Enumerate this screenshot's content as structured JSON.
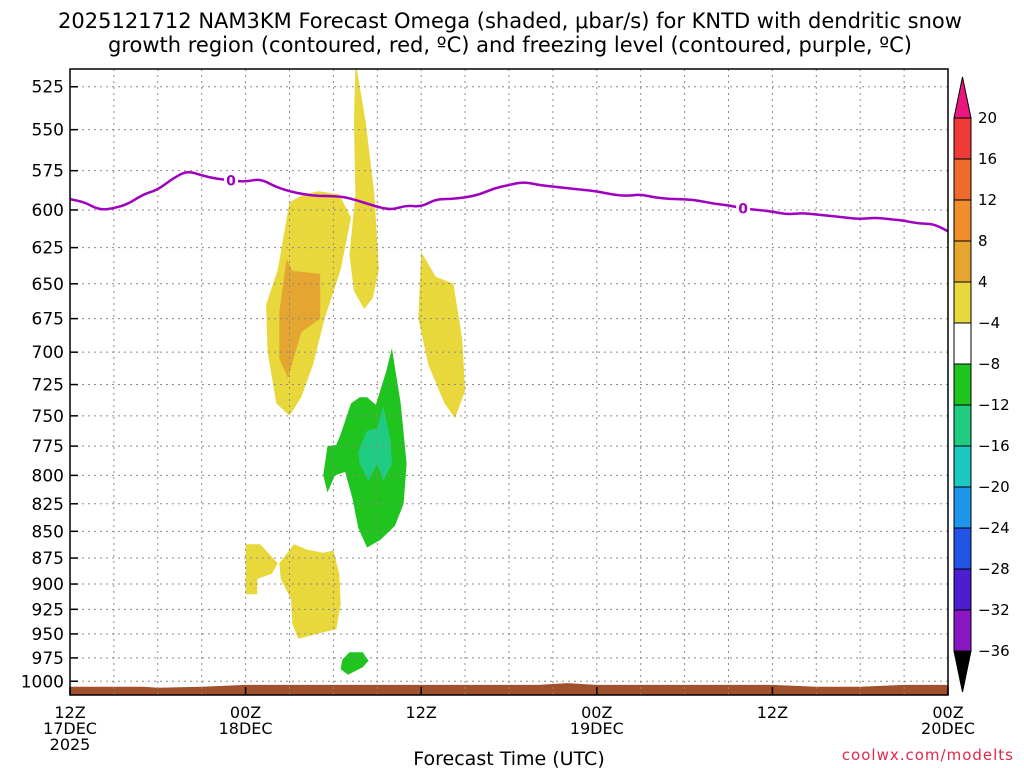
{
  "chart_data": {
    "type": "time-height cross-section",
    "title_line1": "2025121712 NAM3KM Forecast Omega (shaded, μbar/s) for KNTD with dendritic snow",
    "title_line2": "growth region (contoured, red, ºC) and freezing level (contoured, purple, ºC)",
    "xlabel": "Forecast Time (UTC)",
    "credit": "coolwx.com/modelts",
    "x_range_hours": [
      0,
      60
    ],
    "y_range_hPa": [
      1015,
      515
    ],
    "y_scale": "log-pressure",
    "y_ticks": [
      {
        "value": 525,
        "label": "525"
      },
      {
        "value": 550,
        "label": "550"
      },
      {
        "value": 575,
        "label": "575"
      },
      {
        "value": 600,
        "label": "600"
      },
      {
        "value": 625,
        "label": "625"
      },
      {
        "value": 650,
        "label": "650"
      },
      {
        "value": 675,
        "label": "675"
      },
      {
        "value": 700,
        "label": "700"
      },
      {
        "value": 725,
        "label": "725"
      },
      {
        "value": 750,
        "label": "750"
      },
      {
        "value": 775,
        "label": "775"
      },
      {
        "value": 800,
        "label": "800"
      },
      {
        "value": 825,
        "label": "825"
      },
      {
        "value": 850,
        "label": "850"
      },
      {
        "value": 875,
        "label": "875"
      },
      {
        "value": 900,
        "label": "900"
      },
      {
        "value": 925,
        "label": "925"
      },
      {
        "value": 950,
        "label": "950"
      },
      {
        "value": 975,
        "label": "975"
      },
      {
        "value": 1000,
        "label": "1000"
      }
    ],
    "x_ticks": [
      {
        "hour": 0,
        "line1": "12Z",
        "line2": "17DEC",
        "line3": "2025"
      },
      {
        "hour": 12,
        "line1": "00Z",
        "line2": "18DEC",
        "line3": ""
      },
      {
        "hour": 24,
        "line1": "12Z",
        "line2": "",
        "line3": ""
      },
      {
        "hour": 36,
        "line1": "00Z",
        "line2": "19DEC",
        "line3": ""
      },
      {
        "hour": 48,
        "line1": "12Z",
        "line2": "",
        "line3": ""
      },
      {
        "hour": 60,
        "line1": "00Z",
        "line2": "20DEC",
        "line3": ""
      }
    ],
    "x_gridlines_hours": [
      3,
      6,
      9,
      12,
      15,
      18,
      21,
      24,
      27,
      30,
      33,
      36,
      39,
      42,
      45,
      48,
      51,
      54,
      57
    ],
    "colorbar": {
      "levels": [
        20,
        16,
        12,
        8,
        4,
        -4,
        -8,
        -12,
        -16,
        -20,
        -24,
        -28,
        -32,
        -36
      ],
      "labels": [
        "20",
        "16",
        "12",
        "8",
        "4",
        "−4",
        "−8",
        "−12",
        "−16",
        "−20",
        "−24",
        "−28",
        "−32",
        "−36"
      ],
      "colors_top_to_bottom": [
        "#e8177f",
        "#f03a3a",
        "#ee6b2d",
        "#ee8e2d",
        "#e5a631",
        "#e8d83c",
        "#ffffff",
        "#1fc41f",
        "#1fcc82",
        "#1cc8c0",
        "#1c96ea",
        "#2255e6",
        "#4b1ed0",
        "#8a16c4",
        "#a8a8a8",
        "#000000"
      ]
    },
    "freezing_level": {
      "label": "0",
      "color": "#a000c0",
      "hours": [
        0,
        1,
        2,
        3,
        4,
        5,
        6,
        7,
        8,
        9,
        10,
        11,
        12,
        13,
        14,
        15,
        16,
        17,
        18,
        19,
        20,
        21,
        22,
        23,
        24,
        25,
        26,
        27,
        28,
        29,
        30,
        31,
        32,
        33,
        34,
        35,
        36,
        37,
        38,
        39,
        40,
        41,
        42,
        43,
        44,
        45,
        46,
        47,
        48,
        49,
        50,
        51,
        52,
        53,
        54,
        55,
        56,
        57,
        58,
        59,
        60
      ],
      "pressure_hPa": [
        593,
        595,
        600,
        599,
        596,
        590,
        587,
        580,
        575,
        578,
        580,
        581,
        582,
        580,
        585,
        588,
        590,
        591,
        591,
        592,
        595,
        598,
        600,
        597,
        598,
        593,
        593,
        592,
        590,
        586,
        584,
        582,
        584,
        585,
        586,
        587,
        588,
        590,
        591,
        590,
        592,
        593,
        593,
        594,
        596,
        597,
        599,
        600,
        601,
        603,
        602,
        603,
        604,
        605,
        606,
        605,
        606,
        607,
        609,
        609,
        614
      ]
    },
    "omega_regions": [
      {
        "level": "4 to 8",
        "color": "#e8d83c",
        "polygon_hour_hPa": [
          [
            19.6,
            515
          ],
          [
            20.2,
            545
          ],
          [
            20.8,
            590
          ],
          [
            21.1,
            640
          ],
          [
            20.7,
            660
          ],
          [
            20.1,
            668
          ],
          [
            19.4,
            655
          ],
          [
            19.1,
            630
          ],
          [
            19.5,
            590
          ],
          [
            19.4,
            545
          ],
          [
            19.5,
            515
          ]
        ]
      },
      {
        "level": "4 to 8",
        "color": "#e8d83c",
        "polygon_hour_hPa": [
          [
            15.0,
            595
          ],
          [
            16.0,
            590
          ],
          [
            17.0,
            588
          ],
          [
            18.4,
            590
          ],
          [
            19.2,
            605
          ],
          [
            18.5,
            640
          ],
          [
            17.4,
            675
          ],
          [
            16.6,
            710
          ],
          [
            15.8,
            735
          ],
          [
            15.0,
            750
          ],
          [
            14.1,
            740
          ],
          [
            13.5,
            700
          ],
          [
            13.4,
            665
          ],
          [
            14.2,
            640
          ],
          [
            15.0,
            595
          ]
        ]
      },
      {
        "level": "8 to 12",
        "color": "#e5a631",
        "polygon_hour_hPa": [
          [
            14.8,
            633
          ],
          [
            15.2,
            641
          ],
          [
            17.1,
            643
          ],
          [
            17.1,
            675
          ],
          [
            15.8,
            685
          ],
          [
            14.9,
            720
          ],
          [
            14.3,
            705
          ],
          [
            14.3,
            670
          ],
          [
            14.8,
            633
          ]
        ]
      },
      {
        "level": "4 to 8",
        "color": "#e8d83c",
        "polygon_hour_hPa": [
          [
            24.0,
            628
          ],
          [
            25.0,
            645
          ],
          [
            26.2,
            650
          ],
          [
            26.8,
            690
          ],
          [
            27.0,
            730
          ],
          [
            26.3,
            752
          ],
          [
            25.6,
            740
          ],
          [
            24.5,
            710
          ],
          [
            23.8,
            675
          ],
          [
            24.0,
            628
          ]
        ]
      },
      {
        "level": "4 to 8",
        "color": "#e8d83c",
        "polygon_hour_hPa": [
          [
            12.0,
            862
          ],
          [
            13.0,
            862
          ],
          [
            14.2,
            880
          ],
          [
            13.8,
            890
          ],
          [
            12.8,
            895
          ],
          [
            12.8,
            910
          ],
          [
            12.0,
            910
          ],
          [
            12.0,
            862
          ]
        ]
      },
      {
        "level": "4 to 8",
        "color": "#e8d83c",
        "polygon_hour_hPa": [
          [
            15.3,
            862
          ],
          [
            16.2,
            867
          ],
          [
            17.3,
            870
          ],
          [
            18.0,
            868
          ],
          [
            18.4,
            890
          ],
          [
            18.5,
            920
          ],
          [
            18.2,
            945
          ],
          [
            16.9,
            950
          ],
          [
            15.6,
            955
          ],
          [
            15.2,
            940
          ],
          [
            15.1,
            915
          ],
          [
            14.4,
            895
          ],
          [
            14.3,
            880
          ],
          [
            15.3,
            862
          ]
        ]
      },
      {
        "level": "-4 to -8",
        "color": "#1fc41f",
        "polygon_hour_hPa": [
          [
            22.0,
            697
          ],
          [
            22.6,
            740
          ],
          [
            23.0,
            790
          ],
          [
            22.8,
            825
          ],
          [
            22.2,
            845
          ],
          [
            21.2,
            858
          ],
          [
            20.3,
            865
          ],
          [
            19.7,
            847
          ],
          [
            19.3,
            820
          ],
          [
            18.8,
            797
          ],
          [
            18.1,
            800
          ],
          [
            17.6,
            815
          ],
          [
            17.3,
            800
          ],
          [
            17.6,
            775
          ],
          [
            18.2,
            774
          ],
          [
            18.5,
            765
          ],
          [
            19.2,
            740
          ],
          [
            19.8,
            735
          ],
          [
            20.3,
            735
          ],
          [
            20.9,
            741
          ],
          [
            21.6,
            715
          ],
          [
            22.0,
            697
          ]
        ]
      },
      {
        "level": "-8 to -12",
        "color": "#1fcc82",
        "polygon_hour_hPa": [
          [
            21.4,
            742
          ],
          [
            21.9,
            770
          ],
          [
            22.0,
            790
          ],
          [
            21.4,
            805
          ],
          [
            21.0,
            790
          ],
          [
            20.4,
            805
          ],
          [
            19.8,
            790
          ],
          [
            19.7,
            780
          ],
          [
            20.3,
            762
          ],
          [
            21.0,
            760
          ],
          [
            21.4,
            742
          ]
        ]
      },
      {
        "level": "-4 to -8",
        "color": "#1fc41f",
        "polygon_hour_hPa": [
          [
            19.1,
            969
          ],
          [
            20.0,
            969
          ],
          [
            20.4,
            978
          ],
          [
            20.0,
            985
          ],
          [
            19.0,
            993
          ],
          [
            18.5,
            987
          ],
          [
            18.6,
            977
          ],
          [
            19.1,
            969
          ]
        ]
      }
    ],
    "terrain_surface": {
      "color": "#a0502d",
      "hours": [
        0,
        5,
        6,
        9,
        12,
        24,
        32,
        34,
        36,
        48,
        51,
        54,
        57,
        60
      ],
      "pressure_hPa": [
        1006,
        1006,
        1007,
        1006,
        1004,
        1004,
        1004,
        1002,
        1004,
        1004,
        1006,
        1006,
        1004,
        1004
      ]
    }
  }
}
